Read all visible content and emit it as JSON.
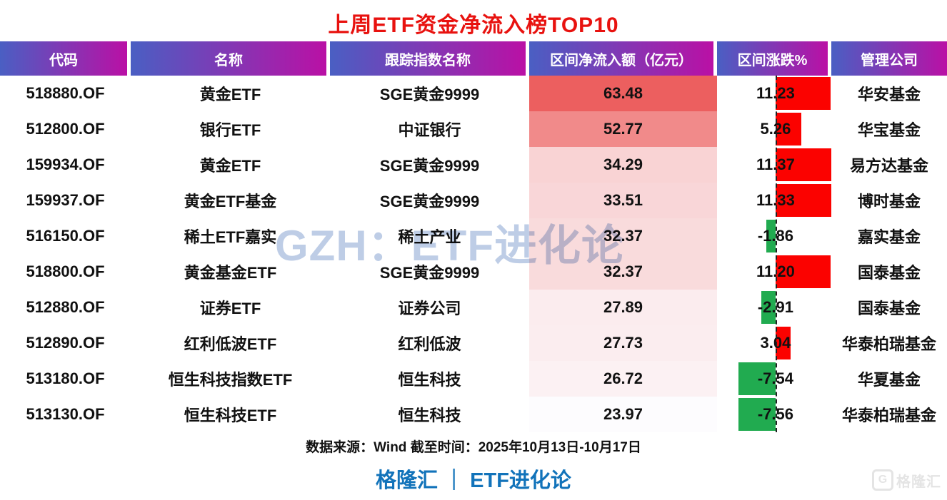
{
  "title": "上周ETF资金净流入榜TOP10",
  "watermark_text": "GZH：ETF进化论",
  "footer": {
    "source_note": "数据来源：Wind 截至时间：2025年10月13日-10月17日",
    "brand": "格隆汇 ｜ ETF进化论",
    "corner_logo_letter": "G",
    "corner_logo_text": "格隆汇"
  },
  "colors": {
    "title_red": "#e8120f",
    "header_gradient_left": "#4a5fc3",
    "header_gradient_right": "#ba10a5",
    "inflow_scale_min": "#fdfcfe",
    "inflow_scale_max": "#ec5f5f",
    "bar_positive": "#fb0200",
    "bar_negative": "#21ab50",
    "brand_blue": "#1273ba",
    "watermark_blue": "#7d9ccd"
  },
  "chart_data": {
    "type": "table",
    "title": "上周ETF资金净流入榜TOP10",
    "columns": [
      "代码",
      "名称",
      "跟踪指数名称",
      "区间净流入额（亿元）",
      "区间涨跌%",
      "管理公司"
    ],
    "rows": [
      {
        "code": "518880.OF",
        "name": "黄金ETF",
        "index": "SGE黄金9999",
        "inflow": "63.48",
        "change": "11.23",
        "company": "华安基金"
      },
      {
        "code": "512800.OF",
        "name": "银行ETF",
        "index": "中证银行",
        "inflow": "52.77",
        "change": "5.26",
        "company": "华宝基金"
      },
      {
        "code": "159934.OF",
        "name": "黄金ETF",
        "index": "SGE黄金9999",
        "inflow": "34.29",
        "change": "11.37",
        "company": "易方达基金"
      },
      {
        "code": "159937.OF",
        "name": "黄金ETF基金",
        "index": "SGE黄金9999",
        "inflow": "33.51",
        "change": "11.33",
        "company": "博时基金"
      },
      {
        "code": "516150.OF",
        "name": "稀土ETF嘉实",
        "index": "稀土产业",
        "inflow": "32.37",
        "change": "-1.86",
        "company": "嘉实基金"
      },
      {
        "code": "518800.OF",
        "name": "黄金基金ETF",
        "index": "SGE黄金9999",
        "inflow": "32.37",
        "change": "11.20",
        "company": "国泰基金"
      },
      {
        "code": "512880.OF",
        "name": "证券ETF",
        "index": "证券公司",
        "inflow": "27.89",
        "change": "-2.91",
        "company": "国泰基金"
      },
      {
        "code": "512890.OF",
        "name": "红利低波ETF",
        "index": "红利低波",
        "inflow": "27.73",
        "change": "3.04",
        "company": "华泰柏瑞基金"
      },
      {
        "code": "513180.OF",
        "name": "恒生科技指数ETF",
        "index": "恒生科技",
        "inflow": "26.72",
        "change": "-7.54",
        "company": "华夏基金"
      },
      {
        "code": "513130.OF",
        "name": "恒生科技ETF",
        "index": "恒生科技",
        "inflow": "23.97",
        "change": "-7.56",
        "company": "华泰柏瑞基金"
      }
    ],
    "conditional_formatting": {
      "inflow_color_scale": {
        "min_value": 23.97,
        "max_value": 63.48,
        "note": "white-to-red fill by value"
      },
      "change_data_bars": {
        "zero_axis_pct": 51.2,
        "pct_per_unit": 4.3,
        "positive": "red bar right of dashed zero axis",
        "negative": "green bar left of dashed zero axis"
      }
    }
  }
}
